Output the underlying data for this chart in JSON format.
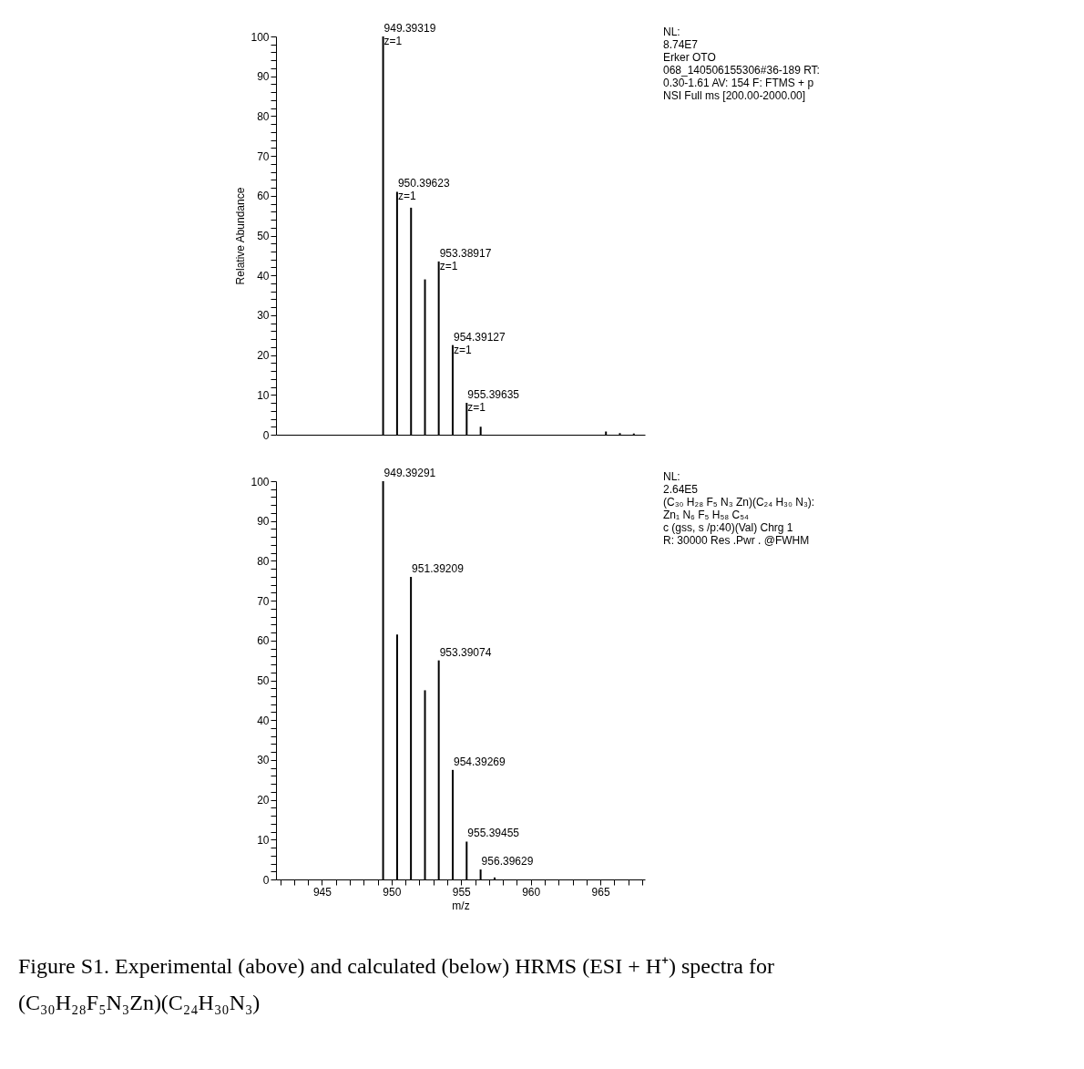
{
  "chart_data": [
    {
      "type": "bar",
      "color": "#000000",
      "x": [
        949.39319,
        950.39623,
        951.4,
        952.4,
        953.38917,
        954.39127,
        955.39635,
        956.4,
        965.4,
        966.4,
        967.4
      ],
      "values": [
        100,
        61,
        57,
        39,
        43.5,
        22.5,
        8,
        2,
        0.8,
        0.4,
        0.3
      ],
      "xlim": [
        941.7,
        968.2
      ],
      "ylim": [
        0,
        100
      ],
      "yticks": [
        0,
        {
          "value": 2,
          "label": null
        },
        {
          "value": 4,
          "label": null
        },
        {
          "value": 6,
          "label": null
        },
        {
          "value": 8,
          "label": null
        },
        10,
        {
          "value": 12,
          "label": null
        },
        {
          "value": 14,
          "label": null
        },
        {
          "value": 16,
          "label": null
        },
        {
          "value": 18,
          "label": null
        },
        20,
        {
          "value": 22,
          "label": null
        },
        {
          "value": 24,
          "label": null
        },
        {
          "value": 26,
          "label": null
        },
        {
          "value": 28,
          "label": null
        },
        30,
        {
          "value": 32,
          "label": null
        },
        {
          "value": 34,
          "label": null
        },
        {
          "value": 36,
          "label": null
        },
        {
          "value": 38,
          "label": null
        },
        40,
        {
          "value": 42,
          "label": null
        },
        {
          "value": 44,
          "label": null
        },
        {
          "value": 46,
          "label": null
        },
        {
          "value": 48,
          "label": null
        },
        50,
        {
          "value": 52,
          "label": null
        },
        {
          "value": 54,
          "label": null
        },
        {
          "value": 56,
          "label": null
        },
        {
          "value": 58,
          "label": null
        },
        60,
        {
          "value": 62,
          "label": null
        },
        {
          "value": 64,
          "label": null
        },
        {
          "value": 66,
          "label": null
        },
        {
          "value": 68,
          "label": null
        },
        70,
        {
          "value": 72,
          "label": null
        },
        {
          "value": 74,
          "label": null
        },
        {
          "value": 76,
          "label": null
        },
        {
          "value": 78,
          "label": null
        },
        80,
        {
          "value": 82,
          "label": null
        },
        {
          "value": 84,
          "label": null
        },
        {
          "value": 86,
          "label": null
        },
        {
          "value": 88,
          "label": null
        },
        90,
        {
          "value": 92,
          "label": null
        },
        {
          "value": 94,
          "label": null
        },
        {
          "value": 96,
          "label": null
        },
        {
          "value": 98,
          "label": null
        },
        100
      ],
      "ylabel": "Relative Abundance",
      "tick_labels": "y",
      "annotations": [
        {
          "text": "949.39319\nz=1",
          "x": 949.39319,
          "y": 100
        },
        {
          "text": "950.39623\nz=1",
          "x": 950.39623,
          "y": 61
        },
        {
          "text": "953.38917\nz=1",
          "x": 953.38917,
          "y": 43.5
        },
        {
          "text": "954.39127\nz=1",
          "x": 954.39127,
          "y": 22.5
        },
        {
          "text": "955.39635\nz=1",
          "x": 955.39635,
          "y": 8
        },
        "NL:\n8.74E7\nErker OTO\n068_140506155306#36-189  RT:\n0.30-1.61  AV: 154 F: FTMS + p\nNSI Full ms [200.00-2000.00]"
      ]
    },
    {
      "type": "bar",
      "color": "#000000",
      "x": [
        949.39291,
        950.4,
        951.39209,
        952.4,
        953.39074,
        954.39269,
        955.39455,
        956.39629,
        957.4
      ],
      "values": [
        100,
        61.5,
        76,
        47.5,
        55,
        27.5,
        9.5,
        2.5,
        0.5
      ],
      "xlim": [
        941.7,
        968.2
      ],
      "ylim": [
        0,
        100
      ],
      "xticks": [
        {
          "value": 942,
          "label": null
        },
        {
          "value": 943,
          "label": null
        },
        {
          "value": 944,
          "label": null
        },
        945,
        {
          "value": 946,
          "label": null
        },
        {
          "value": 947,
          "label": null
        },
        {
          "value": 948,
          "label": null
        },
        {
          "value": 949,
          "label": null
        },
        950,
        {
          "value": 951,
          "label": null
        },
        {
          "value": 952,
          "label": null
        },
        {
          "value": 953,
          "label": null
        },
        {
          "value": 954,
          "label": null
        },
        955,
        {
          "value": 956,
          "label": null
        },
        {
          "value": 957,
          "label": null
        },
        {
          "value": 958,
          "label": null
        },
        {
          "value": 959,
          "label": null
        },
        960,
        {
          "value": 961,
          "label": null
        },
        {
          "value": 962,
          "label": null
        },
        {
          "value": 963,
          "label": null
        },
        {
          "value": 964,
          "label": null
        },
        965,
        {
          "value": 966,
          "label": null
        },
        {
          "value": 967,
          "label": null
        },
        {
          "value": 968,
          "label": null
        }
      ],
      "yticks": [
        0,
        {
          "value": 2,
          "label": null
        },
        {
          "value": 4,
          "label": null
        },
        {
          "value": 6,
          "label": null
        },
        {
          "value": 8,
          "label": null
        },
        10,
        {
          "value": 12,
          "label": null
        },
        {
          "value": 14,
          "label": null
        },
        {
          "value": 16,
          "label": null
        },
        {
          "value": 18,
          "label": null
        },
        20,
        {
          "value": 22,
          "label": null
        },
        {
          "value": 24,
          "label": null
        },
        {
          "value": 26,
          "label": null
        },
        {
          "value": 28,
          "label": null
        },
        30,
        {
          "value": 32,
          "label": null
        },
        {
          "value": 34,
          "label": null
        },
        {
          "value": 36,
          "label": null
        },
        {
          "value": 38,
          "label": null
        },
        40,
        {
          "value": 42,
          "label": null
        },
        {
          "value": 44,
          "label": null
        },
        {
          "value": 46,
          "label": null
        },
        {
          "value": 48,
          "label": null
        },
        50,
        {
          "value": 52,
          "label": null
        },
        {
          "value": 54,
          "label": null
        },
        {
          "value": 56,
          "label": null
        },
        {
          "value": 58,
          "label": null
        },
        60,
        {
          "value": 62,
          "label": null
        },
        {
          "value": 64,
          "label": null
        },
        {
          "value": 66,
          "label": null
        },
        {
          "value": 68,
          "label": null
        },
        70,
        {
          "value": 72,
          "label": null
        },
        {
          "value": 74,
          "label": null
        },
        {
          "value": 76,
          "label": null
        },
        {
          "value": 78,
          "label": null
        },
        80,
        {
          "value": 82,
          "label": null
        },
        {
          "value": 84,
          "label": null
        },
        {
          "value": 86,
          "label": null
        },
        {
          "value": 88,
          "label": null
        },
        90,
        {
          "value": 92,
          "label": null
        },
        {
          "value": 94,
          "label": null
        },
        {
          "value": 96,
          "label": null
        },
        {
          "value": 98,
          "label": null
        },
        100
      ],
      "xlabel": "m/z",
      "annotations": [
        {
          "text": "949.39291",
          "x": 949.39291,
          "y": 100
        },
        {
          "text": "951.39209",
          "x": 951.39209,
          "y": 76
        },
        {
          "text": "953.39074",
          "x": 953.39074,
          "y": 55
        },
        {
          "text": "954.39269",
          "x": 954.39269,
          "y": 27.5
        },
        {
          "text": "955.39455",
          "x": 955.39455,
          "y": 9.5
        },
        {
          "text": "956.39629",
          "x": 956.39629,
          "y": 2.5
        },
        "NL:\n2.64E5\n(C₃₀ H₂₈ F₅ N₃ Zn)(C₂₄ H₃₀ N₃):\nZn₁ N₆ F₅ H₅₈ C₅₄\nc (gss, s /p:40)(Val) Chrg 1\nR: 30000 Res .Pwr . @FWHM",
        "Figure S1. Experimental (above) and calculated (below) HRMS (ESI + H⁺) spectra for (C₃₀H₂₈F₅N₃Zn)(C₂₄H₃₀N₃)"
      ]
    }
  ]
}
